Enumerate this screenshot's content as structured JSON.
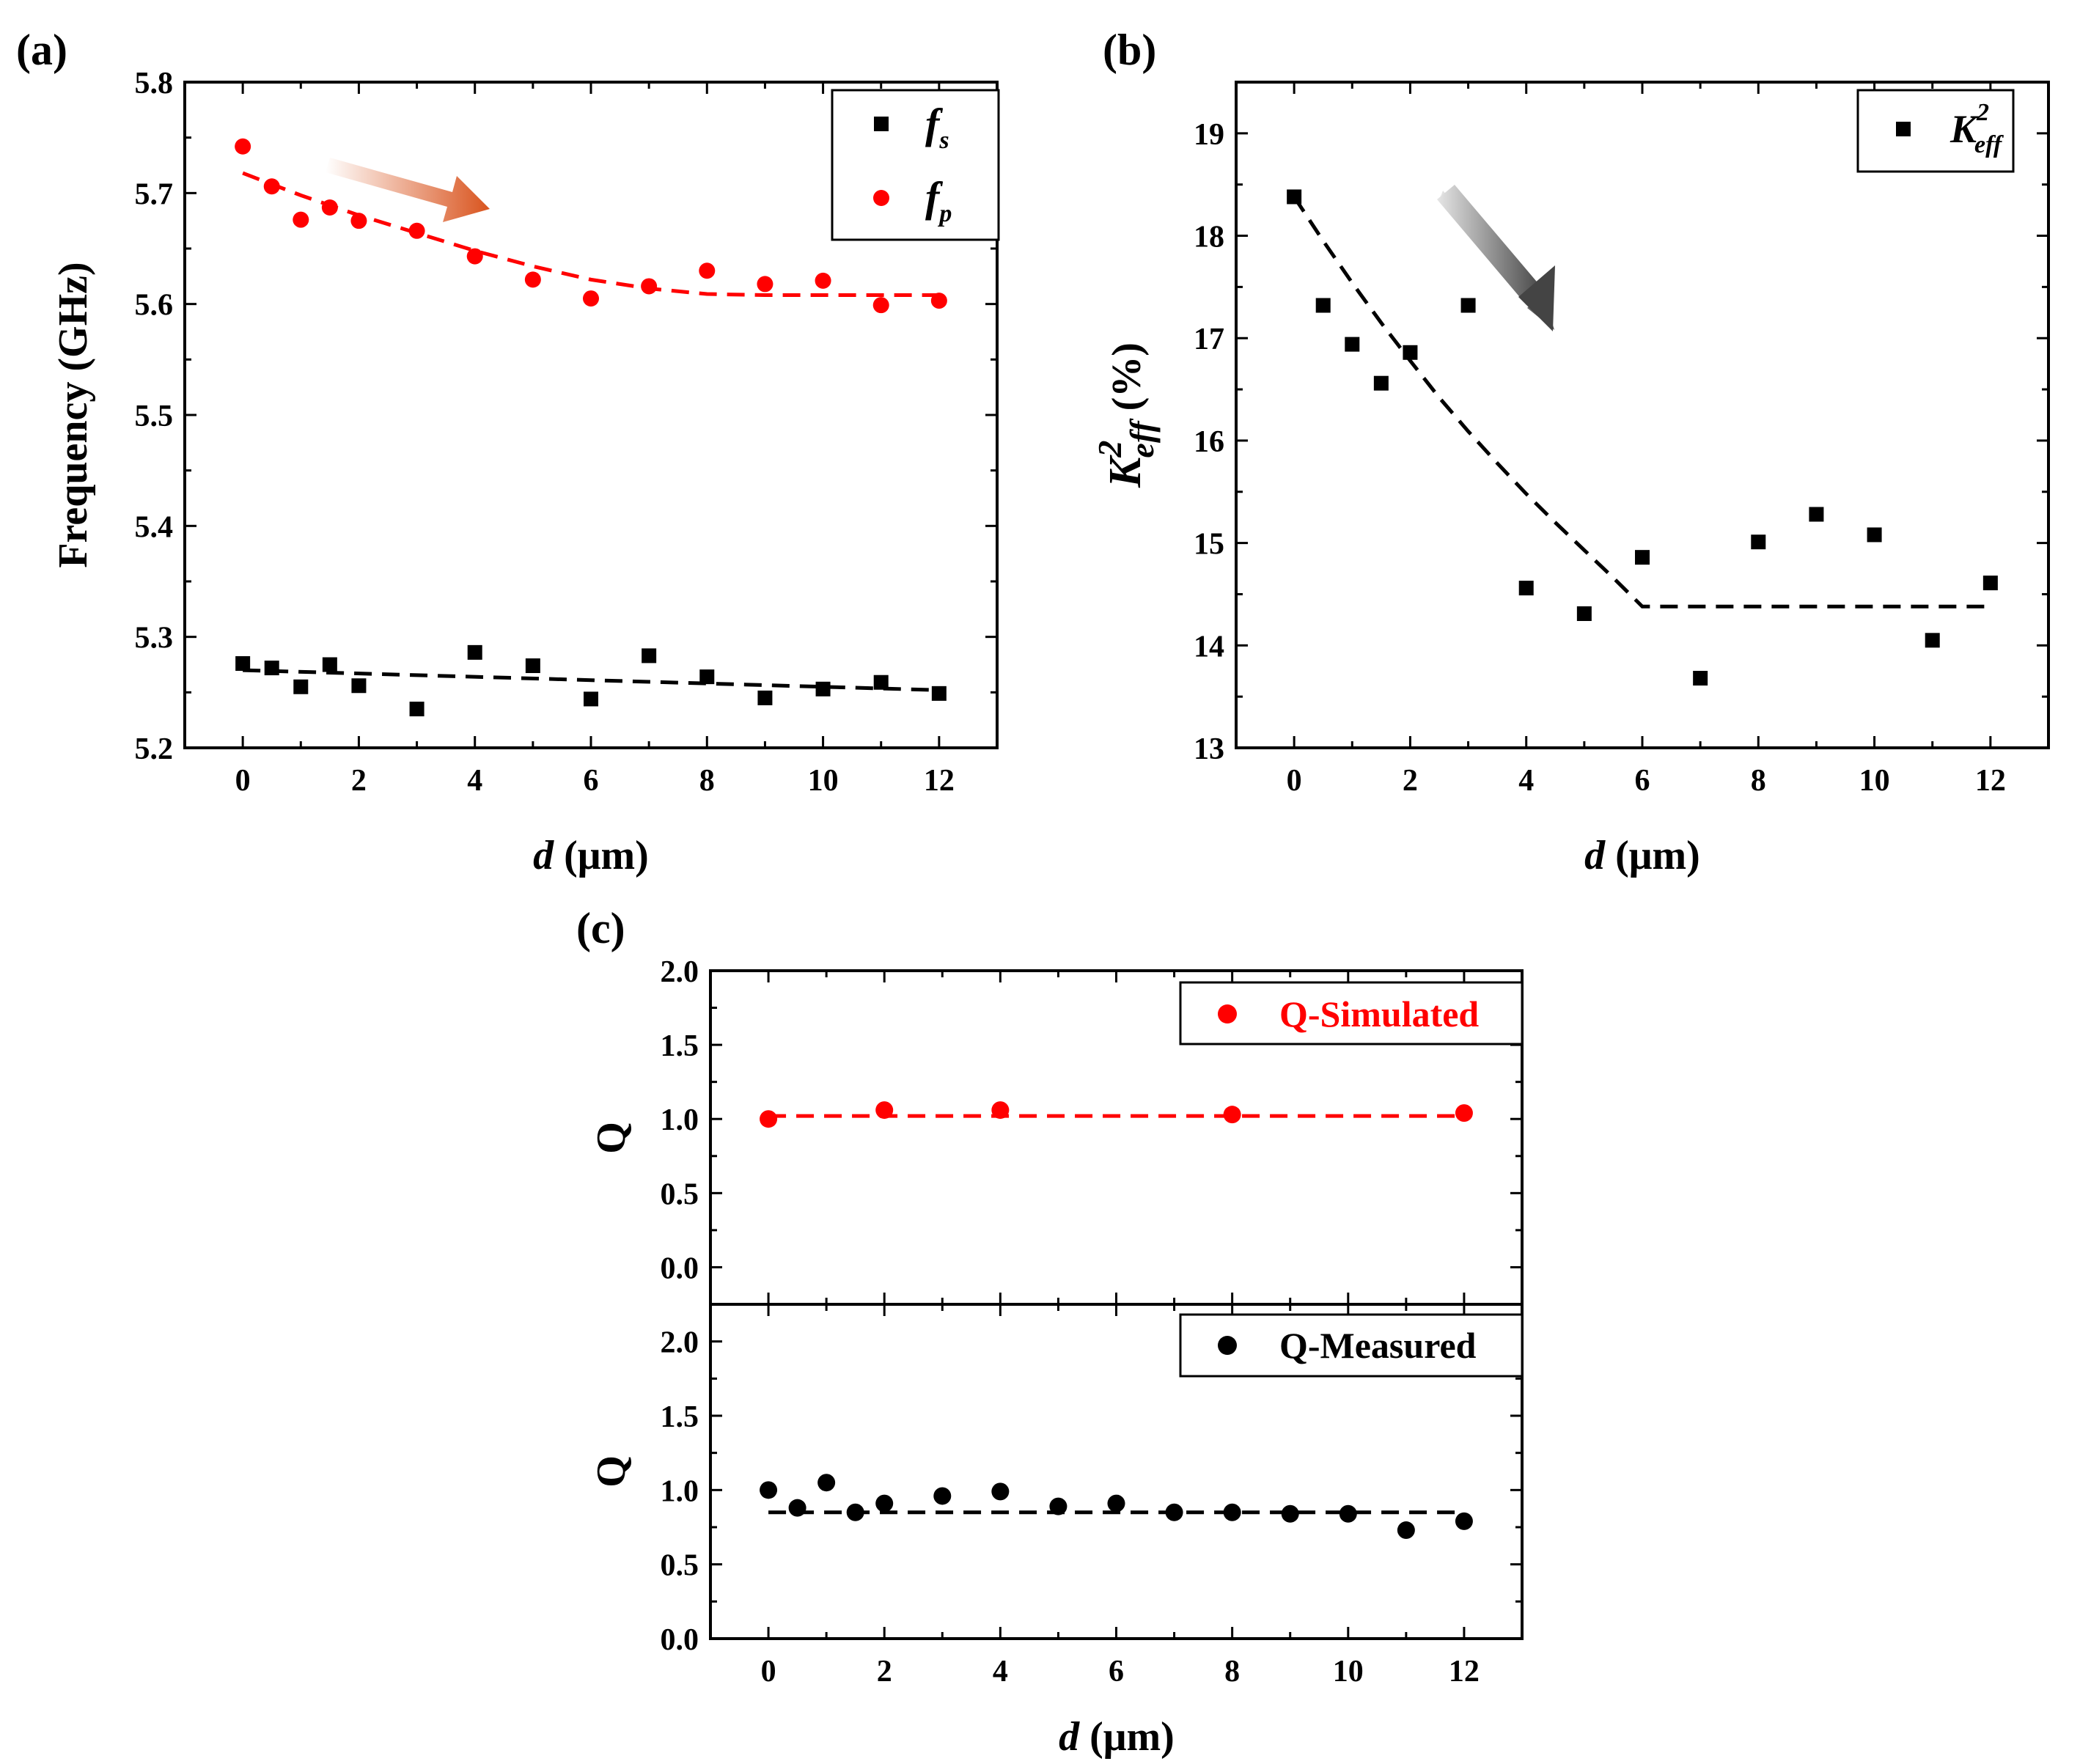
{
  "chart_data": [
    {
      "type": "scatter",
      "panel_label": "(a)",
      "xlabel_var": "d",
      "xlabel_unit": " (μm)",
      "ylabel": "Frequency (GHz)",
      "xlim": [
        -1,
        13
      ],
      "ylim": [
        5.2,
        5.8
      ],
      "xticks": [
        0,
        2,
        4,
        6,
        8,
        10,
        12
      ],
      "yticks": [
        5.2,
        5.3,
        5.4,
        5.5,
        5.6,
        5.7,
        5.8
      ],
      "ytick_labels": [
        "5.2",
        "5.3",
        "5.4",
        "5.5",
        "5.6",
        "5.7",
        "5.8"
      ],
      "legend_position": "top-right",
      "arrow_color": "#d9541e",
      "series": [
        {
          "name": "fs",
          "label_main": "f",
          "label_sub": "s",
          "marker": "square",
          "color": "#000000",
          "x": [
            0,
            0.5,
            1,
            1.5,
            2,
            3,
            4,
            5,
            6,
            7,
            8,
            9,
            10,
            11,
            12
          ],
          "y": [
            5.276,
            5.272,
            5.255,
            5.275,
            5.256,
            5.235,
            5.286,
            5.274,
            5.244,
            5.283,
            5.264,
            5.245,
            5.253,
            5.259,
            5.249
          ],
          "fit_x": [
            0,
            12
          ],
          "fit_y": [
            5.27,
            5.252
          ]
        },
        {
          "name": "fp",
          "label_main": "f",
          "label_sub": "p",
          "marker": "circle",
          "color": "#ff0000",
          "x": [
            0,
            0.5,
            1,
            1.5,
            2,
            3,
            4,
            5,
            6,
            7,
            8,
            9,
            10,
            11,
            12
          ],
          "y": [
            5.742,
            5.706,
            5.676,
            5.687,
            5.675,
            5.666,
            5.643,
            5.622,
            5.605,
            5.616,
            5.63,
            5.618,
            5.621,
            5.599,
            5.603
          ],
          "fit_x": [
            0,
            1,
            2,
            3,
            4,
            5,
            6,
            7,
            8,
            9,
            10,
            11,
            12
          ],
          "fit_y": [
            5.718,
            5.698,
            5.68,
            5.664,
            5.648,
            5.634,
            5.622,
            5.614,
            5.609,
            5.608,
            5.608,
            5.608,
            5.608
          ]
        }
      ]
    },
    {
      "type": "scatter",
      "panel_label": "(b)",
      "xlabel_var": "d",
      "xlabel_unit": " (μm)",
      "ylabel_main": "K",
      "ylabel_sup": "2",
      "ylabel_sub": "eff",
      "ylabel_unit": " (%)",
      "xlim": [
        -1,
        13
      ],
      "ylim": [
        13,
        19.5
      ],
      "xticks": [
        0,
        2,
        4,
        6,
        8,
        10,
        12
      ],
      "yticks": [
        13,
        14,
        15,
        16,
        17,
        18,
        19
      ],
      "legend_position": "top-right",
      "arrow_color": "#444444",
      "series": [
        {
          "name": "K2eff",
          "label_main": "K",
          "label_sup": "2",
          "label_sub": "eff",
          "marker": "square",
          "color": "#000000",
          "x": [
            0,
            0.5,
            1,
            1.5,
            2,
            3,
            4,
            5,
            6,
            7,
            8,
            9,
            10,
            11,
            12
          ],
          "y": [
            18.38,
            17.32,
            16.94,
            16.56,
            16.86,
            17.32,
            14.56,
            14.31,
            14.86,
            13.68,
            15.01,
            15.28,
            15.08,
            14.05,
            14.61
          ],
          "fit_x": [
            0,
            0.5,
            1,
            1.5,
            2,
            2.5,
            3,
            3.5,
            4,
            4.5,
            5,
            5.5,
            6,
            7,
            8,
            9,
            10,
            11,
            12
          ],
          "fit_y": [
            18.38,
            17.95,
            17.54,
            17.15,
            16.78,
            16.42,
            16.09,
            15.78,
            15.48,
            15.2,
            14.93,
            14.66,
            14.38,
            14.38,
            14.38,
            14.38,
            14.38,
            14.38,
            14.38
          ]
        }
      ]
    },
    {
      "type": "scatter",
      "panel_label": "(c)",
      "xlabel_var": "d",
      "xlabel_unit": " (μm)",
      "xlim": [
        -1,
        13
      ],
      "xticks": [
        0,
        2,
        4,
        6,
        8,
        10,
        12
      ],
      "subplots": [
        {
          "ylabel": "Q",
          "ylim": [
            -0.25,
            2.0
          ],
          "yticks": [
            0.0,
            0.5,
            1.0,
            1.5,
            2.0
          ],
          "ytick_labels": [
            "0.0",
            "0.5",
            "1.0",
            "1.5",
            "2.0"
          ],
          "legend": "Q-Simulated",
          "legend_position": "top-right",
          "color": "#ff0000",
          "x": [
            0,
            2,
            4,
            8,
            12
          ],
          "y": [
            1.0,
            1.06,
            1.06,
            1.03,
            1.04
          ],
          "fit_x": [
            0,
            12
          ],
          "fit_y": [
            1.02,
            1.02
          ]
        },
        {
          "ylabel": "Q",
          "ylim": [
            0.0,
            2.25
          ],
          "yticks": [
            0.0,
            0.5,
            1.0,
            1.5,
            2.0
          ],
          "ytick_labels": [
            "0.0",
            "0.5",
            "1.0",
            "1.5",
            "2.0"
          ],
          "legend": "Q-Measured",
          "legend_position": "top-right",
          "color": "#000000",
          "x": [
            0,
            0.5,
            1,
            1.5,
            2,
            3,
            4,
            5,
            6,
            7,
            8,
            9,
            10,
            11,
            12
          ],
          "y": [
            1.0,
            0.88,
            1.05,
            0.85,
            0.91,
            0.96,
            0.99,
            0.89,
            0.91,
            0.85,
            0.85,
            0.84,
            0.84,
            0.73,
            0.79
          ],
          "fit_x": [
            0,
            12
          ],
          "fit_y": [
            0.85,
            0.85
          ]
        }
      ]
    }
  ]
}
